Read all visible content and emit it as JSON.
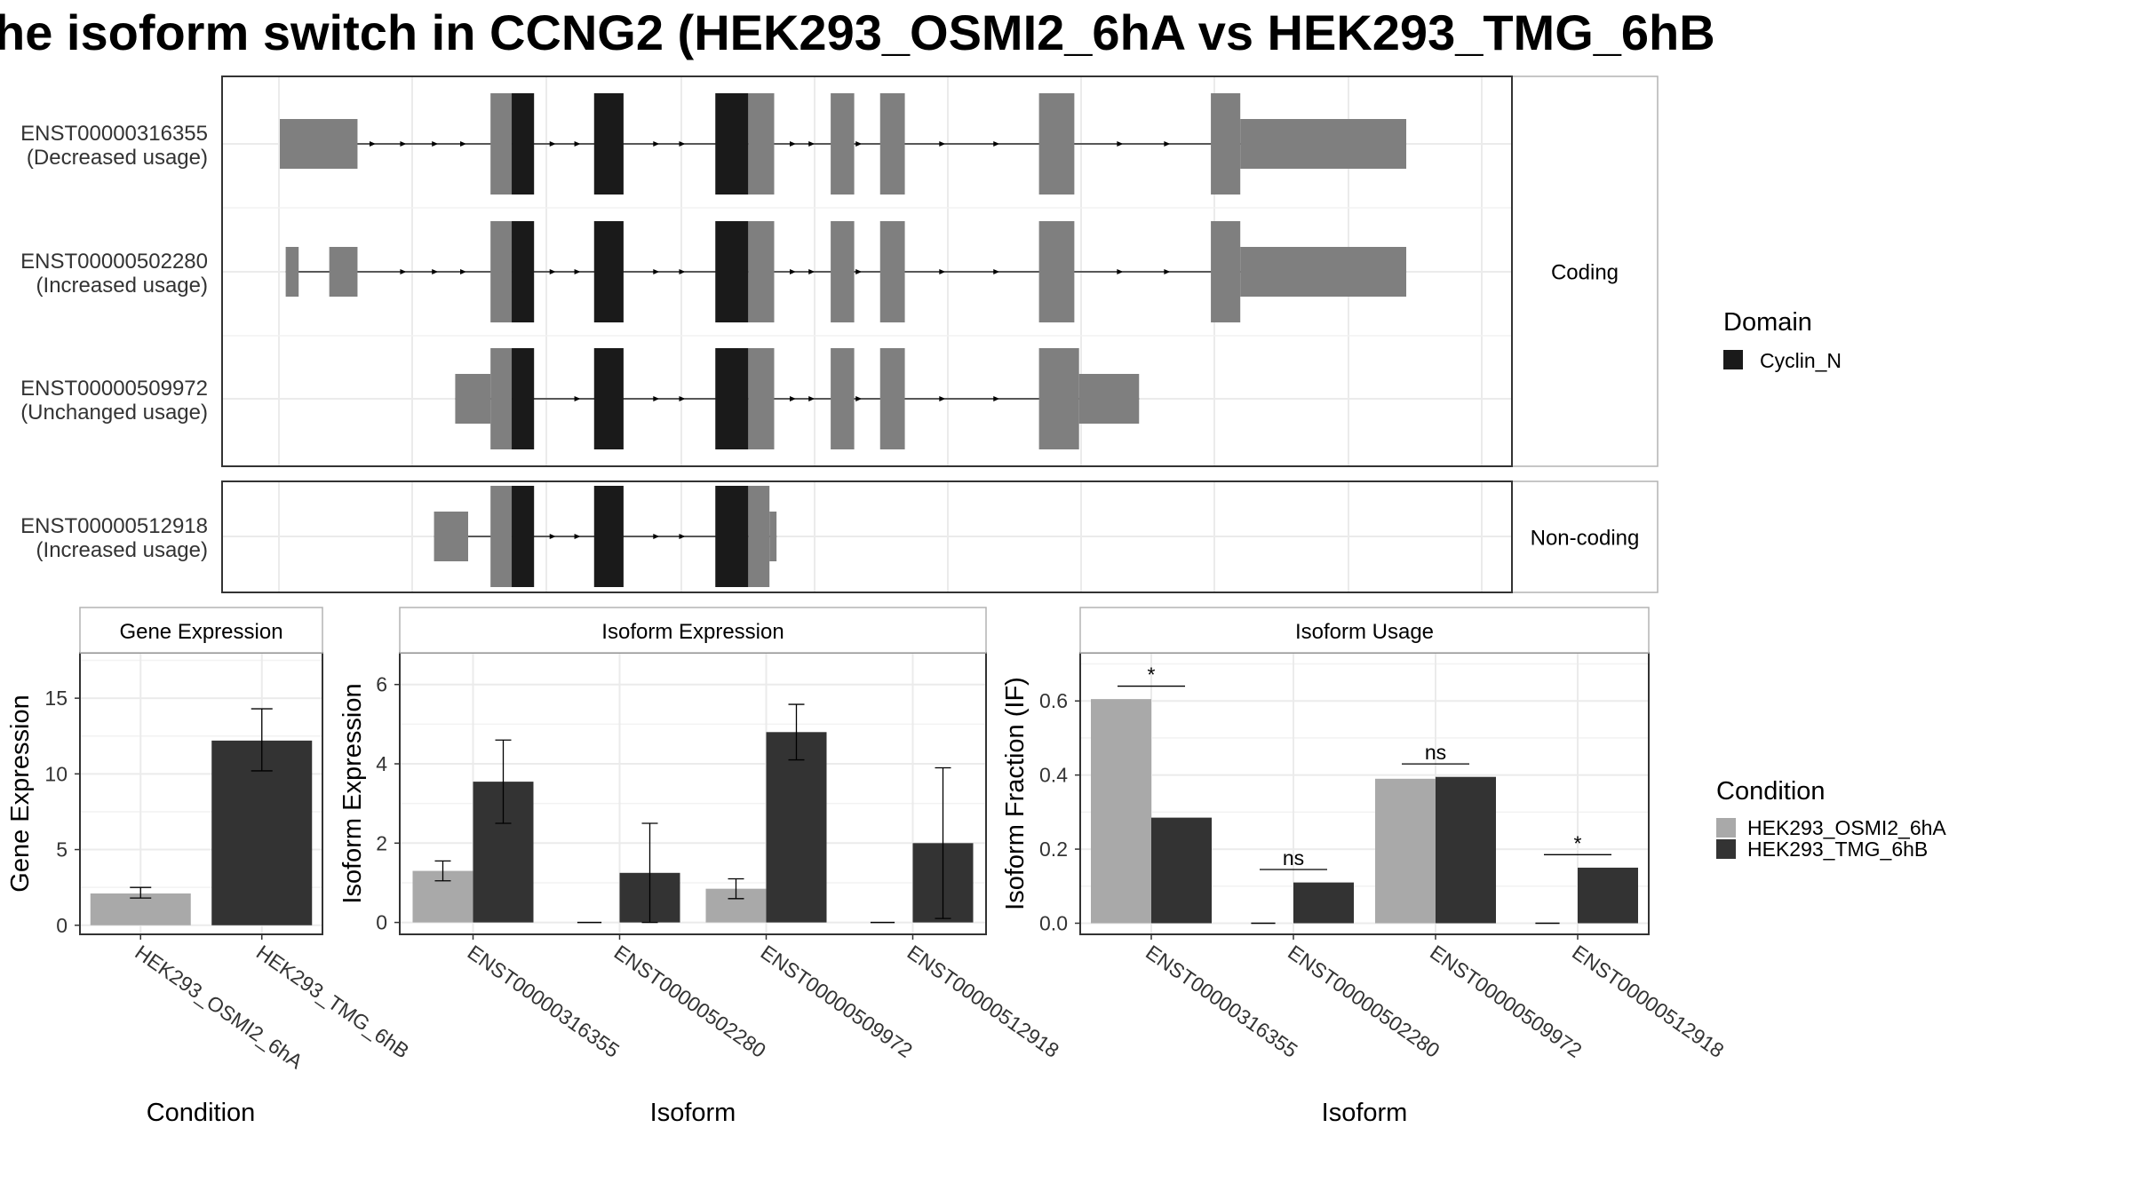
{
  "title": "he isoform switch in CCNG2 (HEK293_OSMI2_6hA vs HEK293_TMG_6hB",
  "colors": {
    "cyclin": "#1a1a1a",
    "exon": "#7f7f7f",
    "condA": "#a9a9a9",
    "condB": "#333333",
    "grid": "#ebebeb",
    "strip_bg": "#ffffff",
    "panel_border": "#333333"
  },
  "transcript_panel": {
    "genome_range": [
      0,
      1000
    ],
    "strips": [
      "Coding",
      "Non-coding"
    ],
    "transcripts": [
      {
        "id": "ENST00000316355",
        "usage": "(Decreased usage)",
        "group": "Coding",
        "exons": [
          {
            "s": 0,
            "e": 66,
            "kind": "utr"
          },
          {
            "s": 179,
            "e": 197,
            "kind": "cds"
          },
          {
            "s": 197,
            "e": 216,
            "kind": "domain"
          },
          {
            "s": 267,
            "e": 292,
            "kind": "domain"
          },
          {
            "s": 370,
            "e": 398,
            "kind": "domain"
          },
          {
            "s": 398,
            "e": 420,
            "kind": "cds"
          },
          {
            "s": 468,
            "e": 488,
            "kind": "cds"
          },
          {
            "s": 510,
            "e": 531,
            "kind": "cds"
          },
          {
            "s": 645,
            "e": 675,
            "kind": "cds"
          },
          {
            "s": 791,
            "e": 816,
            "kind": "cds"
          },
          {
            "s": 816,
            "e": 957,
            "kind": "utr"
          }
        ],
        "arrows": [
          80,
          106,
          133,
          157,
          233,
          254,
          321,
          343,
          437,
          453,
          493,
          564,
          610,
          715,
          755
        ]
      },
      {
        "id": "ENST00000502280",
        "usage": "(Increased usage)",
        "group": "Coding",
        "exons": [
          {
            "s": 5,
            "e": 16,
            "kind": "utr"
          },
          {
            "s": 42,
            "e": 66,
            "kind": "utr"
          },
          {
            "s": 179,
            "e": 197,
            "kind": "cds"
          },
          {
            "s": 197,
            "e": 216,
            "kind": "domain"
          },
          {
            "s": 267,
            "e": 292,
            "kind": "domain"
          },
          {
            "s": 370,
            "e": 398,
            "kind": "domain"
          },
          {
            "s": 398,
            "e": 420,
            "kind": "cds"
          },
          {
            "s": 468,
            "e": 488,
            "kind": "cds"
          },
          {
            "s": 510,
            "e": 531,
            "kind": "cds"
          },
          {
            "s": 645,
            "e": 675,
            "kind": "cds"
          },
          {
            "s": 791,
            "e": 816,
            "kind": "cds"
          },
          {
            "s": 816,
            "e": 957,
            "kind": "utr"
          }
        ],
        "arrows": [
          106,
          133,
          157,
          233,
          254,
          321,
          343,
          437,
          453,
          493,
          564,
          610,
          715,
          755
        ]
      },
      {
        "id": "ENST00000509972",
        "usage": "(Unchanged usage)",
        "group": "Coding",
        "exons": [
          {
            "s": 149,
            "e": 179,
            "kind": "utr"
          },
          {
            "s": 179,
            "e": 197,
            "kind": "cds"
          },
          {
            "s": 197,
            "e": 216,
            "kind": "domain"
          },
          {
            "s": 267,
            "e": 292,
            "kind": "domain"
          },
          {
            "s": 370,
            "e": 398,
            "kind": "domain"
          },
          {
            "s": 398,
            "e": 420,
            "kind": "cds"
          },
          {
            "s": 468,
            "e": 488,
            "kind": "cds"
          },
          {
            "s": 510,
            "e": 531,
            "kind": "cds"
          },
          {
            "s": 645,
            "e": 679,
            "kind": "cds"
          },
          {
            "s": 679,
            "e": 730,
            "kind": "utr"
          }
        ],
        "arrows": [
          254,
          321,
          343,
          437,
          453,
          493,
          564,
          610
        ]
      },
      {
        "id": "ENST00000512918",
        "usage": "(Increased usage)",
        "group": "Non-coding",
        "exons": [
          {
            "s": 131,
            "e": 160,
            "kind": "utr"
          },
          {
            "s": 179,
            "e": 197,
            "kind": "cds"
          },
          {
            "s": 197,
            "e": 216,
            "kind": "domain"
          },
          {
            "s": 267,
            "e": 292,
            "kind": "domain"
          },
          {
            "s": 370,
            "e": 398,
            "kind": "domain"
          },
          {
            "s": 398,
            "e": 416,
            "kind": "cds"
          },
          {
            "s": 416,
            "e": 422,
            "kind": "utr"
          }
        ],
        "arrows": [
          233,
          254,
          321,
          343
        ]
      }
    ]
  },
  "legends": {
    "domain_title": "Domain",
    "domain_items": [
      {
        "label": "Cyclin_N",
        "color": "#1a1a1a"
      }
    ],
    "condition_title": "Condition",
    "condition_items": [
      {
        "label": "HEK293_OSMI2_6hA",
        "color": "#a9a9a9"
      },
      {
        "label": "HEK293_TMG_6hB",
        "color": "#333333"
      }
    ]
  },
  "chart_data": [
    {
      "type": "bar",
      "title": "Gene Expression",
      "xlabel": "Condition",
      "ylabel": "Gene Expression",
      "categories": [
        "HEK293_OSMI2_6hA",
        "HEK293_TMG_6hB"
      ],
      "values": [
        2.1,
        12.2
      ],
      "errors": [
        [
          1.8,
          2.5
        ],
        [
          10.2,
          14.3
        ]
      ],
      "ylim": [
        -0.6,
        18
      ],
      "yticks": [
        0,
        5,
        10,
        15
      ],
      "grid": true
    },
    {
      "type": "bar",
      "title": "Isoform Expression",
      "xlabel": "Isoform",
      "ylabel": "Isoform Expression",
      "categories": [
        "ENST00000316355",
        "ENST00000502280",
        "ENST00000509972",
        "ENST00000512918"
      ],
      "series": [
        {
          "name": "HEK293_OSMI2_6hA",
          "values": [
            1.3,
            0,
            0.85,
            0
          ],
          "errors": [
            [
              1.05,
              1.55
            ],
            null,
            [
              0.6,
              1.1
            ],
            null
          ]
        },
        {
          "name": "HEK293_TMG_6hB",
          "values": [
            3.55,
            1.25,
            4.8,
            2.0
          ],
          "errors": [
            [
              2.5,
              4.6
            ],
            [
              0,
              2.5
            ],
            [
              4.1,
              5.5
            ],
            [
              0.1,
              3.9
            ]
          ]
        }
      ],
      "ylim": [
        -0.3,
        6.8
      ],
      "yticks": [
        0,
        2,
        4,
        6
      ],
      "grid": true
    },
    {
      "type": "bar",
      "title": "Isoform Usage",
      "xlabel": "Isoform",
      "ylabel": "Isoform Fraction (IF)",
      "categories": [
        "ENST00000316355",
        "ENST00000502280",
        "ENST00000509972",
        "ENST00000512918"
      ],
      "series": [
        {
          "name": "HEK293_OSMI2_6hA",
          "values": [
            0.605,
            0,
            0.39,
            0
          ]
        },
        {
          "name": "HEK293_TMG_6hB",
          "values": [
            0.285,
            0.11,
            0.395,
            0.15
          ]
        }
      ],
      "significance": [
        "*",
        "ns",
        "ns",
        "*"
      ],
      "significance_y": [
        0.64,
        0.145,
        0.43,
        0.185
      ],
      "ylim": [
        -0.03,
        0.73
      ],
      "yticks": [
        0.0,
        0.2,
        0.4,
        0.6
      ],
      "ytick_labels": [
        "0.0",
        "0.2",
        "0.4",
        "0.6"
      ],
      "grid": true
    }
  ]
}
